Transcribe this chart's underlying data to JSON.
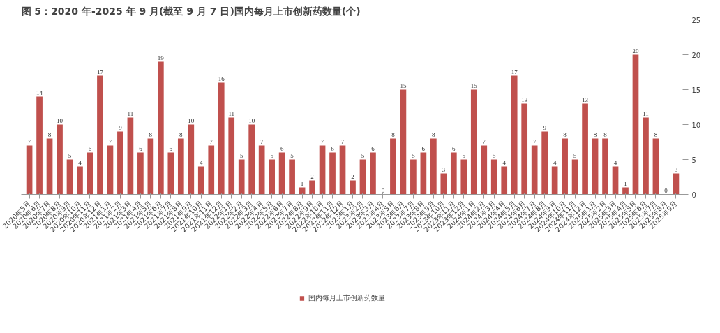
{
  "chart_data": {
    "type": "bar",
    "title": "图 5：2020 年-2025 年 9 月(截至 9 月 7 日)国内每月上市创新药数量(个)",
    "categories": [
      "2020年5月",
      "2020年6月",
      "2020年7月",
      "2020年8月",
      "2020年9月",
      "2020年10月",
      "2020年11月",
      "2020年12月",
      "2021年1月",
      "2021年2月",
      "2021年3月",
      "2021年4月",
      "2021年5月",
      "2021年6月",
      "2021年7月",
      "2021年8月",
      "2021年9月",
      "2021年10月",
      "2021年11月",
      "2021年12月",
      "2022年1月",
      "2022年2月",
      "2022年3月",
      "2022年4月",
      "2022年5月",
      "2022年6月",
      "2022年7月",
      "2022年8月",
      "2022年9月",
      "2022年10月",
      "2022年11月",
      "2022年12月",
      "2023年1月",
      "2023年2月",
      "2023年3月",
      "2023年4月",
      "2023年5月",
      "2023年6月",
      "2023年7月",
      "2023年8月",
      "2023年9月",
      "2023年10月",
      "2023年11月",
      "2023年12月",
      "2024年1月",
      "2024年2月",
      "2024年3月",
      "2024年4月",
      "2024年5月",
      "2024年6月",
      "2024年7月",
      "2024年8月",
      "2024年9月",
      "2024年10月",
      "2024年11月",
      "2024年12月",
      "2025年1月",
      "2025年2月",
      "2025年3月",
      "2025年4月",
      "2025年5月",
      "2025年6月",
      "2025年7月",
      "2025年8月",
      "2025年9月"
    ],
    "series": [
      {
        "name": "国内每月上市创新药数量",
        "color": "#c0504d",
        "values": [
          7,
          14,
          8,
          10,
          5,
          4,
          6,
          17,
          7,
          9,
          11,
          6,
          8,
          19,
          6,
          8,
          10,
          4,
          7,
          16,
          11,
          5,
          10,
          7,
          5,
          6,
          5,
          1,
          2,
          7,
          6,
          7,
          2,
          5,
          6,
          0,
          8,
          15,
          5,
          6,
          8,
          3,
          6,
          5,
          15,
          7,
          5,
          4,
          17,
          13,
          7,
          9,
          4,
          8,
          5,
          13,
          8,
          8,
          4,
          1,
          20,
          11,
          8,
          0,
          3
        ]
      }
    ],
    "ylim": [
      0,
      25
    ],
    "yticks": [
      0,
      5,
      10,
      15,
      20,
      25
    ],
    "data_labels": true,
    "legend": "bottom",
    "grid": false
  }
}
